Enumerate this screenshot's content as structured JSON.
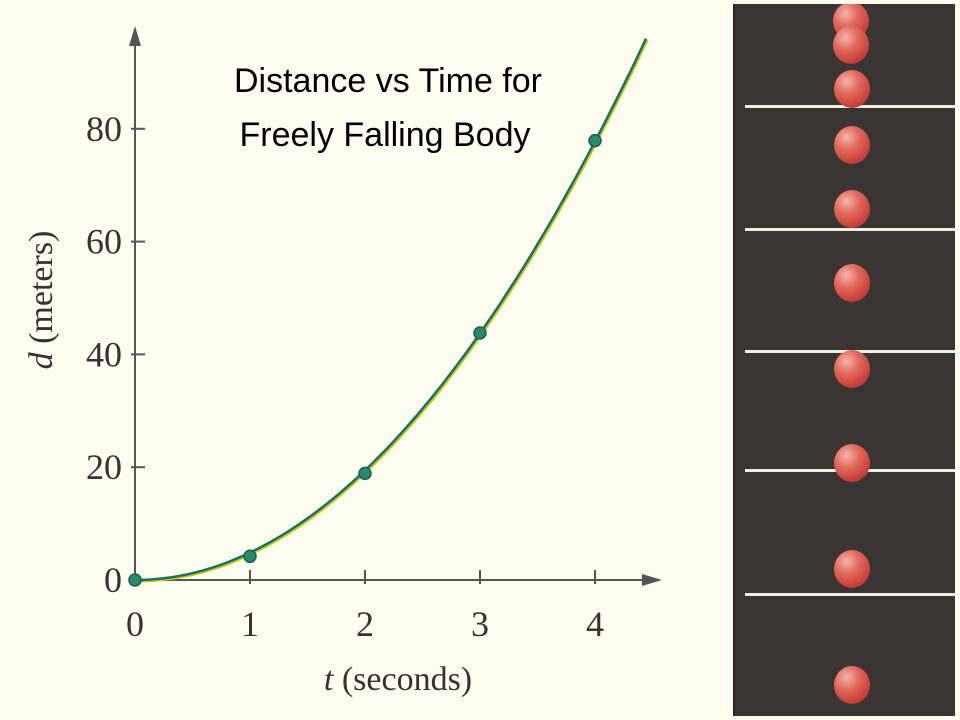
{
  "chart_data": {
    "type": "scatter",
    "title_lines": [
      "Distance vs Time for",
      "Freely Falling Body"
    ],
    "xlabel_var": "t",
    "xlabel_unit": " (seconds)",
    "ylabel_var": "d",
    "ylabel_unit": " (meters)",
    "xlim": [
      0,
      4.5
    ],
    "ylim": [
      0,
      96
    ],
    "x_ticks": [
      0,
      1,
      2,
      3,
      4
    ],
    "y_ticks": [
      0,
      20,
      40,
      60,
      80
    ],
    "series": [
      {
        "points": [
          {
            "x": 0,
            "y": 0
          },
          {
            "x": 1,
            "y": 4.2
          },
          {
            "x": 2,
            "y": 18.9
          },
          {
            "x": 3,
            "y": 43.8
          },
          {
            "x": 4,
            "y": 77.9
          }
        ],
        "curve": "quadratic fit",
        "curve_color": "#1a6e6a",
        "curve_under_color": "#c8c800",
        "marker_color": "#2a8a6a"
      }
    ],
    "grid": false,
    "legend": "none"
  },
  "photo": {
    "background_color": "#3a3533",
    "ball_color": "#d9534a",
    "ruler_color": "#f0f0e0"
  }
}
